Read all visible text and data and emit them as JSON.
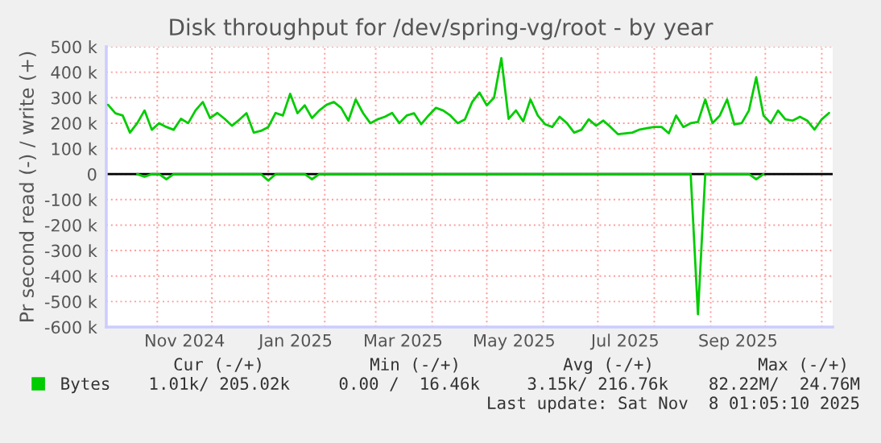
{
  "chart_data": {
    "type": "line",
    "title": "Disk throughput for /dev/spring-vg/root - by year",
    "ylabel": "Pr second read (-) / write (+)",
    "x": [
      "2024-10-05",
      "2024-10-09",
      "2024-10-13",
      "2024-10-17",
      "2024-10-21",
      "2024-10-25",
      "2024-10-29",
      "2024-11-02",
      "2024-11-06",
      "2024-11-10",
      "2024-11-14",
      "2024-11-18",
      "2024-11-22",
      "2024-11-26",
      "2024-11-30",
      "2024-12-04",
      "2024-12-08",
      "2024-12-12",
      "2024-12-16",
      "2024-12-20",
      "2024-12-24",
      "2024-12-28",
      "2025-01-01",
      "2025-01-05",
      "2025-01-09",
      "2025-01-13",
      "2025-01-17",
      "2025-01-21",
      "2025-01-25",
      "2025-01-29",
      "2025-02-02",
      "2025-02-06",
      "2025-02-10",
      "2025-02-14",
      "2025-02-18",
      "2025-02-22",
      "2025-02-26",
      "2025-03-02",
      "2025-03-06",
      "2025-03-10",
      "2025-03-14",
      "2025-03-18",
      "2025-03-22",
      "2025-03-26",
      "2025-03-30",
      "2025-04-03",
      "2025-04-07",
      "2025-04-11",
      "2025-04-15",
      "2025-04-19",
      "2025-04-23",
      "2025-04-27",
      "2025-05-01",
      "2025-05-05",
      "2025-05-09",
      "2025-05-13",
      "2025-05-17",
      "2025-05-21",
      "2025-05-25",
      "2025-05-29",
      "2025-06-02",
      "2025-06-06",
      "2025-06-10",
      "2025-06-14",
      "2025-06-18",
      "2025-06-22",
      "2025-06-26",
      "2025-06-30",
      "2025-07-04",
      "2025-07-08",
      "2025-07-12",
      "2025-07-16",
      "2025-07-20",
      "2025-07-24",
      "2025-07-28",
      "2025-08-01",
      "2025-08-05",
      "2025-08-09",
      "2025-08-13",
      "2025-08-17",
      "2025-08-21",
      "2025-08-25",
      "2025-08-29",
      "2025-09-02",
      "2025-09-06",
      "2025-09-10",
      "2025-09-14",
      "2025-09-18",
      "2025-09-22",
      "2025-09-26",
      "2025-09-30",
      "2025-10-04",
      "2025-10-08",
      "2025-10-12",
      "2025-10-16",
      "2025-10-20",
      "2025-10-24",
      "2025-10-28",
      "2025-11-01",
      "2025-11-05"
    ],
    "series": [
      {
        "name": "Bytes",
        "color": "#00cc00",
        "values": [
          272000,
          239000,
          230000,
          163000,
          200000,
          250000,
          174000,
          200000,
          185000,
          174000,
          217000,
          200000,
          250000,
          283000,
          220000,
          240000,
          217000,
          190000,
          213000,
          239000,
          163000,
          170000,
          185000,
          240000,
          230000,
          315000,
          239000,
          270000,
          220000,
          250000,
          272000,
          283000,
          260000,
          210000,
          293000,
          240000,
          200000,
          215000,
          225000,
          240000,
          200000,
          230000,
          239000,
          196000,
          230000,
          260000,
          250000,
          230000,
          200000,
          215000,
          283000,
          320000,
          270000,
          300000,
          455000,
          217000,
          250000,
          207000,
          293000,
          230000,
          196000,
          185000,
          225000,
          200000,
          163000,
          174000,
          215000,
          190000,
          210000,
          185000,
          157000,
          160000,
          163000,
          175000,
          180000,
          185000,
          185000,
          160000,
          230000,
          185000,
          200000,
          205000,
          293000,
          200000,
          230000,
          293000,
          195000,
          200000,
          250000,
          380000,
          230000,
          200000,
          250000,
          215000,
          210000,
          225000,
          210000,
          175000,
          215000,
          240000
        ]
      },
      {
        "color": "#00cc00",
        "values": [
          null,
          null,
          null,
          null,
          0,
          -10000,
          0,
          0,
          -20000,
          0,
          null,
          null,
          null,
          null,
          null,
          null,
          null,
          null,
          null,
          null,
          null,
          0,
          -25000,
          0,
          null,
          null,
          null,
          0,
          -20000,
          0,
          null,
          null,
          null,
          null,
          null,
          null,
          null,
          null,
          null,
          null,
          null,
          null,
          null,
          null,
          null,
          null,
          null,
          null,
          null,
          null,
          null,
          null,
          null,
          null,
          null,
          null,
          null,
          null,
          null,
          null,
          null,
          null,
          null,
          null,
          null,
          null,
          null,
          null,
          null,
          null,
          null,
          null,
          null,
          null,
          null,
          null,
          null,
          null,
          null,
          null,
          0,
          -550000,
          0,
          null,
          null,
          null,
          null,
          null,
          0,
          -20000,
          0,
          null,
          null,
          null,
          null,
          null,
          null,
          null,
          null,
          null
        ]
      }
    ],
    "xlim": [
      "2024-10-04",
      "2025-11-07"
    ],
    "xticks": [
      {
        "value": "2024-11-01",
        "label": null
      },
      {
        "value": "2024-11-16",
        "label": "Nov 2024"
      },
      {
        "value": "2024-12-01",
        "label": null
      },
      {
        "value": "2025-01-01",
        "label": null
      },
      {
        "value": "2025-01-16",
        "label": "Jan 2025"
      },
      {
        "value": "2025-02-01",
        "label": null
      },
      {
        "value": "2025-03-01",
        "label": null
      },
      {
        "value": "2025-03-16",
        "label": "Mar 2025"
      },
      {
        "value": "2025-04-01",
        "label": null
      },
      {
        "value": "2025-05-01",
        "label": null
      },
      {
        "value": "2025-05-16",
        "label": "May 2025"
      },
      {
        "value": "2025-06-01",
        "label": null
      },
      {
        "value": "2025-07-01",
        "label": null
      },
      {
        "value": "2025-07-16",
        "label": "Jul 2025"
      },
      {
        "value": "2025-08-01",
        "label": null
      },
      {
        "value": "2025-09-01",
        "label": null
      },
      {
        "value": "2025-09-16",
        "label": "Sep 2025"
      },
      {
        "value": "2025-10-01",
        "label": null
      },
      {
        "value": "2025-11-01",
        "label": null
      }
    ],
    "ylim": [
      -600000,
      500000
    ],
    "yticks": [
      {
        "value": -600000,
        "label": "-600 k"
      },
      {
        "value": -500000,
        "label": "-500 k"
      },
      {
        "value": -400000,
        "label": "-400 k"
      },
      {
        "value": -300000,
        "label": "-300 k"
      },
      {
        "value": -200000,
        "label": "-200 k"
      },
      {
        "value": -100000,
        "label": "-100 k"
      },
      0,
      {
        "value": 100000,
        "label": "100 k"
      },
      {
        "value": 200000,
        "label": "200 k"
      },
      {
        "value": 300000,
        "label": "300 k"
      },
      {
        "value": 400000,
        "label": "400 k"
      },
      {
        "value": 500000,
        "label": "500 k"
      }
    ],
    "ref_lines": [
      {
        "axis": "y",
        "value": 0,
        "color": "#000000"
      }
    ],
    "grid": true,
    "legend": "bottom left",
    "annotations": [
      "Cur (-/+)",
      "Min (-/+)",
      "Avg (-/+)",
      "Max (-/+)",
      "1.01k/ 205.02k",
      "0.00 /  16.46k",
      "3.15k/ 216.76k",
      "82.22M/  24.76M",
      "Last update: Sat Nov  8 01:05:10 2025"
    ]
  }
}
